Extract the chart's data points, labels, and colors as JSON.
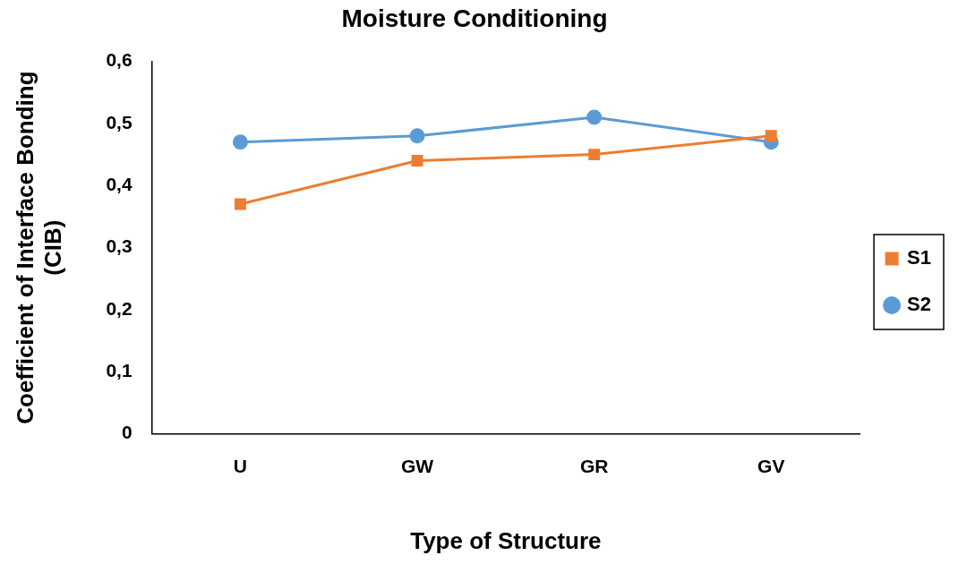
{
  "chart_data": {
    "type": "line",
    "title": "Moisture Conditioning",
    "xlabel": "Type of Structure",
    "ylabel": "Coefficient of Interface Bonding (CIB)",
    "categories": [
      "U",
      "GW",
      "GR",
      "GV"
    ],
    "series": [
      {
        "name": "S1",
        "color": "#ed7d31",
        "marker": "square",
        "values": [
          0.37,
          0.44,
          0.45,
          0.48
        ]
      },
      {
        "name": "S2",
        "color": "#5b9bd5",
        "marker": "circle",
        "values": [
          0.47,
          0.48,
          0.51,
          0.47
        ]
      }
    ],
    "ylim": [
      0,
      0.6
    ],
    "yticks": [
      0,
      {
        "value": 0.1,
        "label": "0,1"
      },
      {
        "value": 0.2,
        "label": "0,2"
      },
      {
        "value": 0.3,
        "label": "0,3"
      },
      {
        "value": 0.4,
        "label": "0,4"
      },
      {
        "value": 0.5,
        "label": "0,5"
      },
      {
        "value": 0.6,
        "label": "0,6"
      }
    ],
    "grid": false,
    "legend": "right",
    "line_style": "solid"
  }
}
